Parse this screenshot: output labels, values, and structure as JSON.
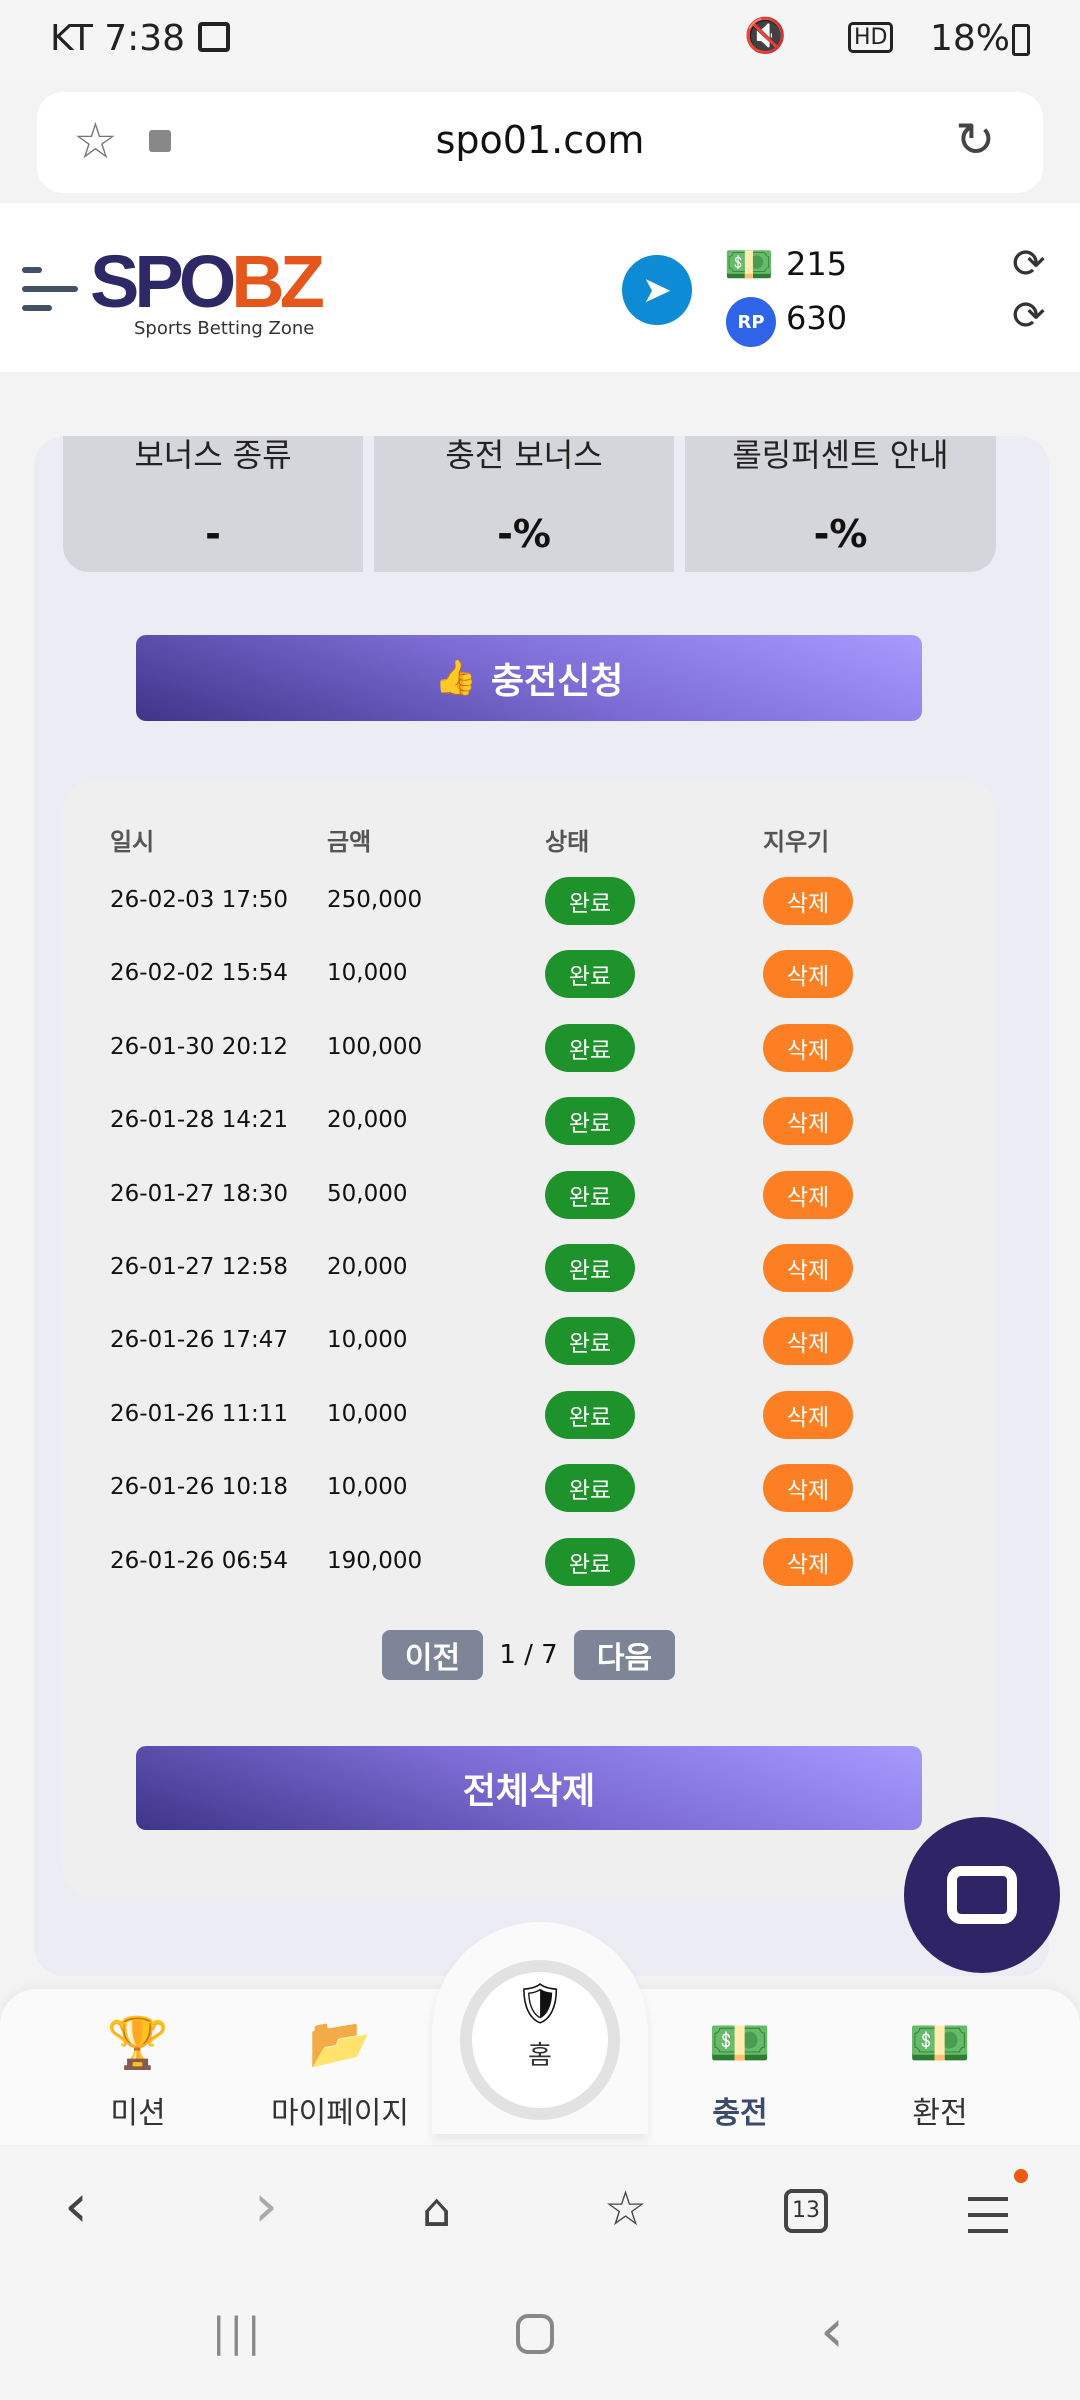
{
  "status_bar": {
    "carrier_time": "KT 7:38",
    "battery": "18%"
  },
  "browser": {
    "url": "spo01.com",
    "tab_count": "13"
  },
  "header": {
    "logo_main_a": "SPO",
    "logo_main_b": "BZ",
    "logo_sub": "Sports Betting Zone",
    "money": "215",
    "points": "630",
    "points_badge": "RP"
  },
  "bonus": [
    {
      "title": "보너스 종류",
      "value": "-"
    },
    {
      "title": "충전 보너스",
      "value": "-%"
    },
    {
      "title": "롤링퍼센트 안내",
      "value": "-%"
    }
  ],
  "apply_button": "충전신청",
  "table": {
    "headers": [
      "일시",
      "금액",
      "상태",
      "지우기"
    ],
    "rows": [
      {
        "date": "26-02-03 17:50",
        "amount": "250,000",
        "status": "완료",
        "delete": "삭제"
      },
      {
        "date": "26-02-02 15:54",
        "amount": "10,000",
        "status": "완료",
        "delete": "삭제"
      },
      {
        "date": "26-01-30 20:12",
        "amount": "100,000",
        "status": "완료",
        "delete": "삭제"
      },
      {
        "date": "26-01-28 14:21",
        "amount": "20,000",
        "status": "완료",
        "delete": "삭제"
      },
      {
        "date": "26-01-27 18:30",
        "amount": "50,000",
        "status": "완료",
        "delete": "삭제"
      },
      {
        "date": "26-01-27 12:58",
        "amount": "20,000",
        "status": "완료",
        "delete": "삭제"
      },
      {
        "date": "26-01-26 17:47",
        "amount": "10,000",
        "status": "완료",
        "delete": "삭제"
      },
      {
        "date": "26-01-26 11:11",
        "amount": "10,000",
        "status": "완료",
        "delete": "삭제"
      },
      {
        "date": "26-01-26 10:18",
        "amount": "10,000",
        "status": "완료",
        "delete": "삭제"
      },
      {
        "date": "26-01-26 06:54",
        "amount": "190,000",
        "status": "완료",
        "delete": "삭제"
      }
    ]
  },
  "pagination": {
    "prev": "이전",
    "current": "1 / 7",
    "next": "다음"
  },
  "delete_all": "전체삭제",
  "bottom_nav": [
    {
      "label": "미션"
    },
    {
      "label": "마이페이지"
    },
    {
      "label": "홈"
    },
    {
      "label": "충전"
    },
    {
      "label": "환전"
    }
  ],
  "colors": {
    "status_complete": "#1e932c",
    "delete": "#fd7f23",
    "accent": "#7b6bd3",
    "nav_active": "#3c4a6e"
  }
}
